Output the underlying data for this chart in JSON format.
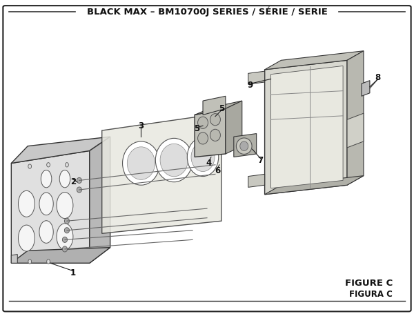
{
  "title": "BLACK MAX – BM10700J SERIES / SÉRIE / SERIE",
  "figure_label": "FIGURE C",
  "figura_label": "FIGURA C",
  "bg_color": "#ffffff",
  "border_color": "#222222",
  "text_color": "#111111",
  "title_fontsize": 9.5,
  "label_fontsize": 8.5,
  "fig_width": 6.0,
  "fig_height": 4.55
}
